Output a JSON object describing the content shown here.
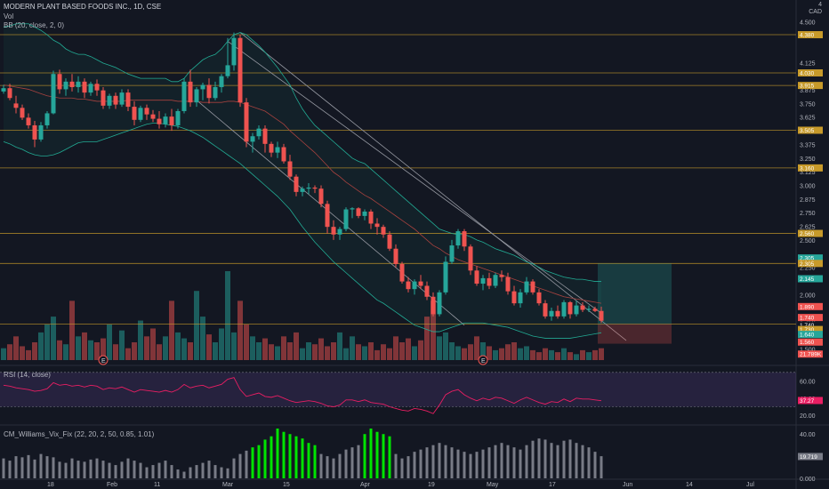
{
  "header": {
    "symbol_title": "MODERN PLANT BASED FOODS INC., 1D, CSE",
    "currency": "CAD",
    "currency_top": "4",
    "vol_label": "Vol",
    "bb_label": "BB (20, close, 2, 0)",
    "rsi_label": "RSI (14, close)",
    "cm_label": "CM_Williams_Vix_Fix (22, 20, 2, 50, 0.85, 1.01)"
  },
  "colors": {
    "up": "#26a69a",
    "down": "#ef5350",
    "bg": "#131722",
    "bb_band": "#22ab94",
    "bb_basis": "#a7423f",
    "hline": "#c79a2a",
    "rsi_band": "#7e57c2",
    "rsi_line": "#e91e63",
    "vix_green": "#00e400",
    "vix_gray": "#787b86"
  },
  "chart_data": {
    "type": "candlestick",
    "price_axis": {
      "ticks": [
        "4.500",
        "4.375",
        "4.125",
        "3.875",
        "3.750",
        "3.625",
        "3.375",
        "3.250",
        "3.125",
        "3.000",
        "2.875",
        "2.750",
        "2.625",
        "2.500",
        "2.250",
        "2.000",
        "1.750",
        "1.500"
      ],
      "range": [
        1.4,
        4.6
      ]
    },
    "price_tags": [
      {
        "label": "4.380",
        "value": 4.38,
        "color": "#c79a2a"
      },
      {
        "label": "4.030",
        "value": 4.03,
        "color": "#c79a2a"
      },
      {
        "label": "3.915",
        "value": 3.915,
        "color": "#c79a2a"
      },
      {
        "label": "3.505",
        "value": 3.505,
        "color": "#c79a2a"
      },
      {
        "label": "3.160",
        "value": 3.16,
        "color": "#c79a2a"
      },
      {
        "label": "2.560",
        "value": 2.56,
        "color": "#c79a2a"
      },
      {
        "label": "2.305",
        "value": 2.335,
        "color": "#26a69a"
      },
      {
        "label": "2.305",
        "value": 2.285,
        "color": "#c79a2a"
      },
      {
        "label": "2.145",
        "value": 2.145,
        "color": "#26a69a"
      },
      {
        "label": "1.890",
        "value": 1.89,
        "color": "#ef5350"
      },
      {
        "label": "1.740",
        "value": 1.79,
        "color": "#ef5350"
      },
      {
        "label": "1.740",
        "value": 1.72,
        "color": "#131722"
      },
      {
        "label": "1.730",
        "value": 1.68,
        "color": "#c79a2a"
      },
      {
        "label": "1.640",
        "value": 1.635,
        "color": "#26a69a"
      },
      {
        "label": "1.560",
        "value": 1.565,
        "color": "#ef5350"
      },
      {
        "label": "21.789K",
        "value": 1.455,
        "color": "#ef5350"
      }
    ],
    "horizontal_lines": [
      4.38,
      4.03,
      3.915,
      3.505,
      3.16,
      2.56,
      2.285,
      1.73
    ],
    "x_ticks": [
      "18",
      "Feb",
      "11",
      "Mar",
      "15",
      "Apr",
      "19",
      "May",
      "17",
      "Jun",
      "14",
      "Jul"
    ],
    "events": [
      {
        "label": "E",
        "index": 16
      },
      {
        "label": "E",
        "index": 77
      }
    ],
    "candles": [
      [
        3.86,
        3.92,
        3.84,
        3.89
      ],
      [
        3.89,
        3.93,
        3.78,
        3.8
      ],
      [
        3.75,
        3.82,
        3.66,
        3.71
      ],
      [
        3.71,
        3.74,
        3.6,
        3.62
      ],
      [
        3.62,
        3.66,
        3.52,
        3.55
      ],
      [
        3.55,
        3.59,
        3.35,
        3.42
      ],
      [
        3.42,
        3.58,
        3.4,
        3.55
      ],
      [
        3.55,
        3.68,
        3.52,
        3.66
      ],
      [
        3.66,
        4.05,
        3.65,
        4.02
      ],
      [
        4.02,
        4.06,
        3.84,
        3.88
      ],
      [
        3.88,
        3.98,
        3.82,
        3.95
      ],
      [
        3.95,
        4.02,
        3.86,
        3.9
      ],
      [
        3.9,
        4.0,
        3.85,
        3.95
      ],
      [
        3.95,
        3.98,
        3.8,
        3.85
      ],
      [
        3.85,
        3.95,
        3.82,
        3.93
      ],
      [
        3.93,
        3.97,
        3.82,
        3.87
      ],
      [
        3.87,
        3.9,
        3.7,
        3.73
      ],
      [
        3.73,
        3.84,
        3.7,
        3.82
      ],
      [
        3.82,
        3.85,
        3.7,
        3.74
      ],
      [
        3.74,
        3.88,
        3.72,
        3.85
      ],
      [
        3.85,
        3.88,
        3.68,
        3.72
      ],
      [
        3.72,
        3.77,
        3.55,
        3.6
      ],
      [
        3.6,
        3.73,
        3.58,
        3.71
      ],
      [
        3.71,
        3.74,
        3.6,
        3.65
      ],
      [
        3.65,
        3.69,
        3.58,
        3.61
      ],
      [
        3.61,
        3.68,
        3.52,
        3.56
      ],
      [
        3.56,
        3.66,
        3.53,
        3.63
      ],
      [
        3.63,
        3.7,
        3.5,
        3.55
      ],
      [
        3.55,
        3.7,
        3.52,
        3.68
      ],
      [
        3.68,
        3.98,
        3.66,
        3.95
      ],
      [
        3.95,
        4.06,
        3.72,
        3.76
      ],
      [
        3.76,
        3.9,
        3.72,
        3.88
      ],
      [
        3.88,
        3.94,
        3.78,
        3.92
      ],
      [
        3.92,
        3.98,
        3.75,
        3.8
      ],
      [
        3.8,
        3.95,
        3.78,
        3.9
      ],
      [
        3.9,
        4.02,
        3.85,
        4.0
      ],
      [
        4.0,
        4.35,
        3.98,
        4.1
      ],
      [
        4.1,
        4.4,
        4.05,
        4.35
      ],
      [
        4.35,
        4.38,
        3.72,
        3.76
      ],
      [
        3.76,
        3.8,
        3.35,
        3.4
      ],
      [
        3.4,
        3.48,
        3.3,
        3.45
      ],
      [
        3.45,
        3.55,
        3.42,
        3.52
      ],
      [
        3.52,
        3.55,
        3.3,
        3.38
      ],
      [
        3.38,
        3.4,
        3.26,
        3.3
      ],
      [
        3.3,
        3.4,
        3.25,
        3.35
      ],
      [
        3.35,
        3.38,
        3.2,
        3.22
      ],
      [
        3.22,
        3.28,
        3.05,
        3.08
      ],
      [
        3.08,
        3.1,
        2.9,
        2.94
      ],
      [
        2.94,
        2.99,
        2.9,
        2.97
      ],
      [
        2.97,
        3.02,
        2.92,
        2.98
      ],
      [
        2.98,
        3.0,
        2.93,
        2.97
      ],
      [
        2.97,
        3.0,
        2.8,
        2.83
      ],
      [
        2.83,
        2.86,
        2.56,
        2.62
      ],
      [
        2.62,
        2.68,
        2.5,
        2.55
      ],
      [
        2.55,
        2.62,
        2.5,
        2.6
      ],
      [
        2.6,
        2.8,
        2.58,
        2.78
      ],
      [
        2.78,
        2.8,
        2.7,
        2.79
      ],
      [
        2.79,
        2.8,
        2.7,
        2.72
      ],
      [
        2.72,
        2.78,
        2.68,
        2.76
      ],
      [
        2.76,
        2.78,
        2.6,
        2.65
      ],
      [
        2.65,
        2.7,
        2.55,
        2.62
      ],
      [
        2.62,
        2.64,
        2.52,
        2.55
      ],
      [
        2.55,
        2.58,
        2.4,
        2.42
      ],
      [
        2.42,
        2.46,
        2.25,
        2.28
      ],
      [
        2.28,
        2.3,
        2.1,
        2.12
      ],
      [
        2.12,
        2.16,
        2.02,
        2.05
      ],
      [
        2.05,
        2.14,
        2.0,
        2.12
      ],
      [
        2.12,
        2.18,
        2.05,
        2.08
      ],
      [
        2.08,
        2.12,
        1.95,
        1.98
      ],
      [
        1.98,
        2.02,
        1.8,
        1.82
      ],
      [
        1.82,
        2.04,
        1.8,
        2.02
      ],
      [
        2.02,
        2.35,
        2.0,
        2.3
      ],
      [
        2.3,
        2.5,
        2.28,
        2.45
      ],
      [
        2.45,
        2.6,
        2.42,
        2.58
      ],
      [
        2.58,
        2.6,
        2.4,
        2.44
      ],
      [
        2.44,
        2.46,
        2.18,
        2.22
      ],
      [
        2.22,
        2.26,
        2.08,
        2.1
      ],
      [
        2.1,
        2.18,
        2.04,
        2.15
      ],
      [
        2.15,
        2.2,
        2.05,
        2.08
      ],
      [
        2.08,
        2.2,
        2.06,
        2.18
      ],
      [
        2.18,
        2.22,
        2.12,
        2.16
      ],
      [
        2.16,
        2.2,
        2.0,
        2.03
      ],
      [
        2.03,
        2.08,
        1.9,
        1.92
      ],
      [
        1.92,
        2.05,
        1.88,
        2.02
      ],
      [
        2.02,
        2.16,
        2.0,
        2.12
      ],
      [
        2.12,
        2.14,
        2.0,
        2.02
      ],
      [
        2.02,
        2.05,
        1.9,
        1.92
      ],
      [
        1.92,
        1.95,
        1.78,
        1.8
      ],
      [
        1.8,
        1.88,
        1.76,
        1.85
      ],
      [
        1.85,
        1.9,
        1.78,
        1.8
      ],
      [
        1.8,
        1.95,
        1.78,
        1.93
      ],
      [
        1.93,
        1.94,
        1.78,
        1.82
      ],
      [
        1.82,
        1.94,
        1.8,
        1.9
      ],
      [
        1.9,
        1.93,
        1.84,
        1.86
      ],
      [
        1.86,
        1.9,
        1.84,
        1.87
      ],
      [
        1.87,
        1.89,
        1.84,
        1.85
      ],
      [
        1.85,
        1.89,
        1.74,
        1.76
      ]
    ],
    "bb_upper": [
      4.45,
      4.46,
      4.48,
      4.48,
      4.48,
      4.45,
      4.42,
      4.38,
      4.33,
      4.3,
      4.25,
      4.22,
      4.2,
      4.2,
      4.18,
      4.15,
      4.12,
      4.1,
      4.08,
      4.05,
      4.02,
      4.0,
      3.98,
      3.98,
      3.98,
      3.98,
      3.98,
      3.95,
      3.95,
      3.98,
      4.05,
      4.1,
      4.15,
      4.18,
      4.2,
      4.25,
      4.32,
      4.38,
      4.4,
      4.38,
      4.33,
      4.28,
      4.22,
      4.15,
      4.08,
      4.0,
      3.92,
      3.8,
      3.7,
      3.62,
      3.55,
      3.5,
      3.45,
      3.4,
      3.35,
      3.3,
      3.25,
      3.22,
      3.2,
      3.15,
      3.1,
      3.05,
      3.0,
      2.95,
      2.9,
      2.85,
      2.8,
      2.75,
      2.7,
      2.65,
      2.6,
      2.58,
      2.56,
      2.55,
      2.55,
      2.53,
      2.5,
      2.48,
      2.45,
      2.42,
      2.4,
      2.38,
      2.36,
      2.33,
      2.3,
      2.28,
      2.25,
      2.22,
      2.2,
      2.18,
      2.16,
      2.15,
      2.14,
      2.14,
      2.13,
      2.12,
      2.12
    ],
    "bb_basis": [
      3.92,
      3.91,
      3.9,
      3.89,
      3.88,
      3.86,
      3.84,
      3.82,
      3.81,
      3.8,
      3.8,
      3.8,
      3.79,
      3.79,
      3.78,
      3.77,
      3.77,
      3.77,
      3.77,
      3.77,
      3.78,
      3.78,
      3.78,
      3.78,
      3.78,
      3.78,
      3.78,
      3.78,
      3.77,
      3.77,
      3.77,
      3.77,
      3.76,
      3.76,
      3.76,
      3.76,
      3.77,
      3.77,
      3.76,
      3.74,
      3.72,
      3.7,
      3.68,
      3.64,
      3.6,
      3.56,
      3.5,
      3.45,
      3.4,
      3.35,
      3.3,
      3.24,
      3.18,
      3.12,
      3.08,
      3.03,
      2.99,
      2.95,
      2.91,
      2.88,
      2.84,
      2.8,
      2.76,
      2.72,
      2.68,
      2.64,
      2.6,
      2.55,
      2.5,
      2.45,
      2.42,
      2.38,
      2.35,
      2.32,
      2.3,
      2.28,
      2.26,
      2.24,
      2.22,
      2.2,
      2.18,
      2.16,
      2.14,
      2.12,
      2.1,
      2.08,
      2.06,
      2.04,
      2.02,
      2.0,
      1.98,
      1.97,
      1.96,
      1.95,
      1.94,
      1.93,
      1.92
    ],
    "bb_lower": [
      3.4,
      3.38,
      3.35,
      3.33,
      3.3,
      3.28,
      3.27,
      3.27,
      3.28,
      3.3,
      3.33,
      3.36,
      3.39,
      3.4,
      3.4,
      3.4,
      3.42,
      3.44,
      3.46,
      3.48,
      3.5,
      3.52,
      3.54,
      3.56,
      3.57,
      3.57,
      3.56,
      3.55,
      3.54,
      3.52,
      3.5,
      3.47,
      3.44,
      3.4,
      3.36,
      3.32,
      3.28,
      3.24,
      3.2,
      3.15,
      3.1,
      3.05,
      3.0,
      2.95,
      2.9,
      2.84,
      2.78,
      2.7,
      2.62,
      2.55,
      2.48,
      2.42,
      2.36,
      2.3,
      2.25,
      2.2,
      2.15,
      2.1,
      2.05,
      2.0,
      1.95,
      1.92,
      1.88,
      1.84,
      1.8,
      1.76,
      1.72,
      1.7,
      1.68,
      1.66,
      1.66,
      1.68,
      1.7,
      1.72,
      1.74,
      1.74,
      1.74,
      1.74,
      1.73,
      1.72,
      1.71,
      1.7,
      1.68,
      1.66,
      1.64,
      1.62,
      1.61,
      1.6,
      1.6,
      1.6,
      1.6,
      1.6,
      1.61,
      1.62,
      1.63,
      1.64,
      1.65
    ],
    "volumes": [
      6,
      8,
      12,
      7,
      5,
      9,
      14,
      18,
      22,
      10,
      8,
      30,
      12,
      14,
      10,
      9,
      11,
      18,
      8,
      15,
      6,
      9,
      20,
      12,
      16,
      8,
      12,
      30,
      14,
      11,
      9,
      35,
      22,
      13,
      9,
      16,
      45,
      14,
      30,
      18,
      12,
      9,
      11,
      8,
      7,
      12,
      9,
      14,
      6,
      9,
      8,
      11,
      7,
      9,
      14,
      6,
      12,
      8,
      7,
      9,
      5,
      8,
      6,
      12,
      9,
      11,
      7,
      10,
      22,
      30,
      12,
      14,
      9,
      7,
      6,
      8,
      12,
      9,
      7,
      5,
      6,
      8,
      9,
      6,
      7,
      5,
      4,
      6,
      5,
      4,
      6,
      4,
      3,
      5,
      4,
      5,
      6
    ],
    "rsi": {
      "levels": [
        "60.00",
        "40.00",
        "20.00"
      ],
      "current": "37.27",
      "band": [
        30,
        70
      ],
      "range": [
        15,
        75
      ],
      "values": [
        55,
        54,
        52,
        51,
        50,
        48,
        49,
        51,
        58,
        55,
        56,
        54,
        55,
        53,
        55,
        54,
        50,
        52,
        51,
        53,
        50,
        47,
        50,
        49,
        48,
        47,
        49,
        47,
        50,
        56,
        52,
        54,
        55,
        52,
        54,
        56,
        62,
        64,
        50,
        42,
        44,
        46,
        42,
        41,
        43,
        40,
        37,
        35,
        36,
        37,
        36,
        34,
        31,
        30,
        32,
        38,
        38,
        36,
        38,
        35,
        34,
        33,
        30,
        28,
        26,
        25,
        28,
        27,
        25,
        22,
        32,
        44,
        48,
        50,
        44,
        40,
        37,
        40,
        38,
        41,
        40,
        37,
        34,
        38,
        41,
        38,
        35,
        33,
        36,
        35,
        39,
        36,
        40,
        39,
        39,
        38,
        37
      ]
    },
    "vix": {
      "levels": [
        "40.00",
        "20.00",
        "0.000"
      ],
      "current": "19.719",
      "range": [
        0,
        45
      ],
      "values": [
        18,
        16,
        20,
        19,
        21,
        17,
        22,
        20,
        19,
        15,
        14,
        18,
        16,
        15,
        17,
        18,
        16,
        14,
        12,
        15,
        18,
        16,
        14,
        10,
        12,
        14,
        16,
        12,
        8,
        6,
        10,
        12,
        14,
        16,
        12,
        10,
        9,
        18,
        22,
        25,
        28,
        30,
        35,
        38,
        45,
        42,
        40,
        38,
        36,
        32,
        30,
        22,
        20,
        18,
        22,
        26,
        28,
        30,
        40,
        45,
        42,
        40,
        38,
        22,
        18,
        20,
        24,
        26,
        28,
        30,
        32,
        30,
        28,
        26,
        24,
        22,
        24,
        26,
        28,
        30,
        32,
        30,
        28,
        26,
        30,
        34,
        36,
        35,
        32,
        30,
        34,
        35,
        32,
        30,
        28,
        24,
        20
      ],
      "green": [
        40,
        41,
        42,
        43,
        44,
        45,
        46,
        47,
        48,
        49,
        50,
        58,
        59,
        60,
        61,
        62
      ]
    }
  }
}
